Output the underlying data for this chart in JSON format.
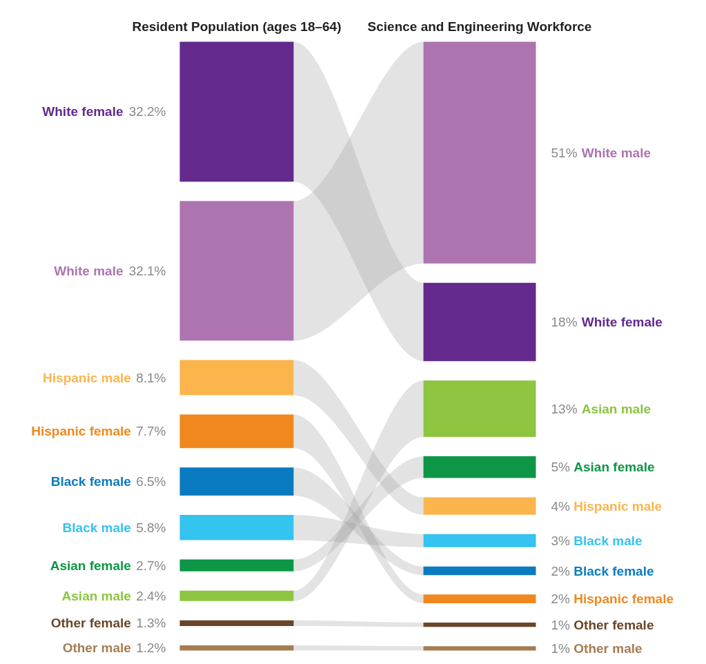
{
  "chart_data": [
    {
      "type": "other",
      "title": "Resident Population (ages 18–64)",
      "categories": [
        "White female",
        "White male",
        "Hispanic male",
        "Hispanic female",
        "Black female",
        "Black male",
        "Asian female",
        "Asian male",
        "Other female",
        "Other male"
      ],
      "values": [
        32.2,
        32.1,
        8.1,
        7.7,
        6.5,
        5.8,
        2.7,
        2.4,
        1.3,
        1.2
      ],
      "value_labels": [
        "32.2%",
        "32.1%",
        "8.1%",
        "7.7%",
        "6.5%",
        "5.8%",
        "2.7%",
        "2.4%",
        "1.3%",
        "1.2%"
      ],
      "colors": [
        "#63298d",
        "#ad74b0",
        "#fbb54c",
        "#f0881f",
        "#0b7bc1",
        "#35c3ef",
        "#0e9647",
        "#8dc540",
        "#6a4526",
        "#a57c52"
      ]
    },
    {
      "type": "other",
      "title": "Science and Engineering Workforce",
      "categories": [
        "White male",
        "White female",
        "Asian male",
        "Asian female",
        "Hispanic male",
        "Black male",
        "Black female",
        "Hispanic female",
        "Other female",
        "Other male"
      ],
      "values": [
        51,
        18,
        13,
        5,
        4,
        3,
        2,
        2,
        1,
        1
      ],
      "value_labels": [
        "51%",
        "18%",
        "13%",
        "5%",
        "4%",
        "3%",
        "2%",
        "2%",
        "1%",
        "1%"
      ],
      "colors": [
        "#ad74b0",
        "#63298d",
        "#8dc540",
        "#0e9647",
        "#fbb54c",
        "#35c3ef",
        "#0b7bc1",
        "#f0881f",
        "#6a4526",
        "#a57c52"
      ]
    }
  ]
}
